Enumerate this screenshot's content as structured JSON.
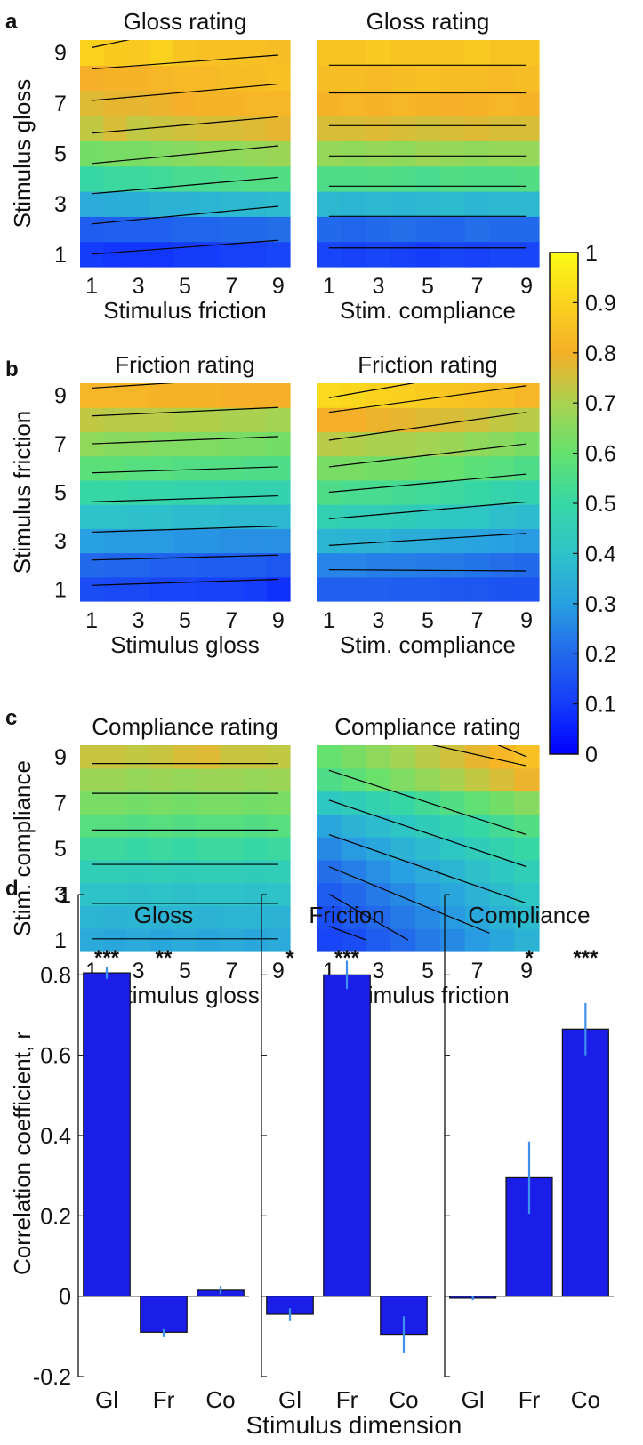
{
  "panel_letters": [
    "a",
    "b",
    "c",
    "d"
  ],
  "colorbar": {
    "ticks": [
      "1",
      "0.9",
      "0.8",
      "0.7",
      "0.6",
      "0.5",
      "0.4",
      "0.3",
      "0.2",
      "0.1",
      "0"
    ]
  },
  "chart_data": [
    {
      "type": "heatmap",
      "panel": "a",
      "title": "Gloss rating",
      "xlabel": "Stimulus friction",
      "ylabel": "Stimulus gloss",
      "xticks": [
        "1",
        "3",
        "5",
        "7",
        "9"
      ],
      "yticks": [
        "1",
        "3",
        "5",
        "7",
        "9"
      ],
      "x": [
        1,
        2,
        3,
        4,
        5,
        6,
        7,
        8,
        9
      ],
      "y": [
        1,
        2,
        3,
        4,
        5,
        6,
        7,
        8,
        9
      ],
      "grid": [
        [
          0.1,
          0.09,
          0.09,
          0.09,
          0.1,
          0.1,
          0.11,
          0.11,
          0.12
        ],
        [
          0.17,
          0.18,
          0.18,
          0.18,
          0.19,
          0.19,
          0.2,
          0.2,
          0.21
        ],
        [
          0.33,
          0.34,
          0.34,
          0.35,
          0.35,
          0.36,
          0.37,
          0.37,
          0.38
        ],
        [
          0.5,
          0.51,
          0.51,
          0.52,
          0.54,
          0.54,
          0.55,
          0.56,
          0.56
        ],
        [
          0.62,
          0.63,
          0.63,
          0.64,
          0.65,
          0.66,
          0.66,
          0.67,
          0.68
        ],
        [
          0.73,
          0.76,
          0.73,
          0.74,
          0.75,
          0.76,
          0.76,
          0.77,
          0.78
        ],
        [
          0.77,
          0.78,
          0.78,
          0.79,
          0.8,
          0.81,
          0.81,
          0.82,
          0.82
        ],
        [
          0.8,
          0.81,
          0.81,
          0.82,
          0.83,
          0.83,
          0.84,
          0.84,
          0.85
        ],
        [
          0.9,
          0.88,
          0.87,
          0.9,
          0.86,
          0.85,
          0.85,
          0.85,
          0.84
        ]
      ]
    },
    {
      "type": "heatmap",
      "panel": "a",
      "title": "Gloss rating",
      "xlabel": "Stim. compliance",
      "ylabel": "",
      "xticks": [
        "1",
        "3",
        "5",
        "7",
        "9"
      ],
      "yticks": [],
      "x": [
        1,
        2,
        3,
        4,
        5,
        6,
        7,
        8,
        9
      ],
      "y": [
        1,
        2,
        3,
        4,
        5,
        6,
        7,
        8,
        9
      ],
      "grid": [
        [
          0.12,
          0.11,
          0.12,
          0.11,
          0.1,
          0.12,
          0.11,
          0.12,
          0.12
        ],
        [
          0.2,
          0.19,
          0.2,
          0.21,
          0.2,
          0.19,
          0.21,
          0.2,
          0.2
        ],
        [
          0.37,
          0.36,
          0.37,
          0.36,
          0.37,
          0.38,
          0.36,
          0.37,
          0.37
        ],
        [
          0.55,
          0.55,
          0.56,
          0.55,
          0.54,
          0.56,
          0.55,
          0.55,
          0.56
        ],
        [
          0.67,
          0.66,
          0.67,
          0.66,
          0.68,
          0.67,
          0.66,
          0.67,
          0.67
        ],
        [
          0.76,
          0.76,
          0.77,
          0.76,
          0.75,
          0.76,
          0.77,
          0.76,
          0.76
        ],
        [
          0.81,
          0.82,
          0.81,
          0.82,
          0.81,
          0.8,
          0.81,
          0.82,
          0.81
        ],
        [
          0.84,
          0.84,
          0.83,
          0.84,
          0.85,
          0.84,
          0.84,
          0.83,
          0.84
        ],
        [
          0.86,
          0.86,
          0.87,
          0.86,
          0.86,
          0.86,
          0.87,
          0.86,
          0.86
        ]
      ]
    },
    {
      "type": "heatmap",
      "panel": "b",
      "title": "Friction rating",
      "xlabel": "Stimulus gloss",
      "ylabel": "Stimulus friction",
      "xticks": [
        "1",
        "3",
        "5",
        "7",
        "9"
      ],
      "yticks": [
        "1",
        "3",
        "5",
        "7",
        "9"
      ],
      "x": [
        1,
        2,
        3,
        4,
        5,
        6,
        7,
        8,
        9
      ],
      "y": [
        1,
        2,
        3,
        4,
        5,
        6,
        7,
        8,
        9
      ],
      "grid": [
        [
          0.14,
          0.13,
          0.13,
          0.12,
          0.12,
          0.11,
          0.11,
          0.1,
          0.08
        ],
        [
          0.2,
          0.19,
          0.19,
          0.18,
          0.18,
          0.17,
          0.17,
          0.17,
          0.16
        ],
        [
          0.3,
          0.29,
          0.29,
          0.29,
          0.28,
          0.28,
          0.27,
          0.27,
          0.27
        ],
        [
          0.4,
          0.4,
          0.39,
          0.39,
          0.38,
          0.38,
          0.37,
          0.37,
          0.37
        ],
        [
          0.5,
          0.5,
          0.49,
          0.49,
          0.48,
          0.48,
          0.47,
          0.47,
          0.47
        ],
        [
          0.58,
          0.58,
          0.57,
          0.57,
          0.56,
          0.56,
          0.56,
          0.55,
          0.55
        ],
        [
          0.66,
          0.65,
          0.65,
          0.64,
          0.64,
          0.64,
          0.63,
          0.63,
          0.62
        ],
        [
          0.73,
          0.72,
          0.72,
          0.72,
          0.71,
          0.71,
          0.7,
          0.7,
          0.69
        ],
        [
          0.82,
          0.82,
          0.82,
          0.81,
          0.81,
          0.81,
          0.8,
          0.8,
          0.8
        ]
      ]
    },
    {
      "type": "heatmap",
      "panel": "b",
      "title": "Friction rating",
      "xlabel": "Stim. compliance",
      "ylabel": "",
      "xticks": [
        "1",
        "3",
        "5",
        "7",
        "9"
      ],
      "yticks": [],
      "x": [
        1,
        2,
        3,
        4,
        5,
        6,
        7,
        8,
        9
      ],
      "y": [
        1,
        2,
        3,
        4,
        5,
        6,
        7,
        8,
        9
      ],
      "grid": [
        [
          0.18,
          0.18,
          0.18,
          0.17,
          0.17,
          0.16,
          0.16,
          0.15,
          0.15
        ],
        [
          0.25,
          0.25,
          0.24,
          0.24,
          0.23,
          0.23,
          0.22,
          0.21,
          0.2
        ],
        [
          0.36,
          0.35,
          0.35,
          0.34,
          0.33,
          0.32,
          0.31,
          0.3,
          0.29
        ],
        [
          0.46,
          0.45,
          0.45,
          0.44,
          0.43,
          0.42,
          0.41,
          0.39,
          0.38
        ],
        [
          0.55,
          0.54,
          0.54,
          0.53,
          0.52,
          0.51,
          0.5,
          0.48,
          0.47
        ],
        [
          0.63,
          0.63,
          0.62,
          0.62,
          0.61,
          0.6,
          0.58,
          0.57,
          0.55
        ],
        [
          0.72,
          0.71,
          0.7,
          0.7,
          0.69,
          0.68,
          0.66,
          0.65,
          0.63
        ],
        [
          0.8,
          0.8,
          0.79,
          0.78,
          0.77,
          0.76,
          0.75,
          0.73,
          0.72
        ],
        [
          0.92,
          0.91,
          0.9,
          0.89,
          0.88,
          0.86,
          0.85,
          0.84,
          0.82
        ]
      ]
    },
    {
      "type": "heatmap",
      "panel": "c",
      "title": "Compliance rating",
      "xlabel": "Stimulus gloss",
      "ylabel": "Stim. compliance",
      "xticks": [
        "1",
        "3",
        "5",
        "7",
        "9"
      ],
      "yticks": [
        "1",
        "3",
        "5",
        "7",
        "9"
      ],
      "x": [
        1,
        2,
        3,
        4,
        5,
        6,
        7,
        8,
        9
      ],
      "y": [
        1,
        2,
        3,
        4,
        5,
        6,
        7,
        8,
        9
      ],
      "grid": [
        [
          0.33,
          0.32,
          0.33,
          0.32,
          0.33,
          0.32,
          0.33,
          0.32,
          0.33
        ],
        [
          0.36,
          0.35,
          0.36,
          0.35,
          0.36,
          0.35,
          0.36,
          0.36,
          0.35
        ],
        [
          0.4,
          0.4,
          0.39,
          0.4,
          0.39,
          0.4,
          0.4,
          0.39,
          0.4
        ],
        [
          0.45,
          0.45,
          0.44,
          0.45,
          0.44,
          0.45,
          0.45,
          0.44,
          0.45
        ],
        [
          0.51,
          0.51,
          0.5,
          0.51,
          0.5,
          0.51,
          0.51,
          0.5,
          0.51
        ],
        [
          0.57,
          0.57,
          0.56,
          0.57,
          0.56,
          0.57,
          0.57,
          0.56,
          0.57
        ],
        [
          0.63,
          0.63,
          0.62,
          0.63,
          0.62,
          0.63,
          0.63,
          0.62,
          0.63
        ],
        [
          0.68,
          0.68,
          0.67,
          0.68,
          0.67,
          0.68,
          0.68,
          0.67,
          0.68
        ],
        [
          0.74,
          0.74,
          0.73,
          0.74,
          0.76,
          0.77,
          0.74,
          0.74,
          0.73
        ]
      ]
    },
    {
      "type": "heatmap",
      "panel": "c",
      "title": "Compliance rating",
      "xlabel": "Stimulus friction",
      "ylabel": "",
      "xticks": [
        "1",
        "3",
        "5",
        "7",
        "9"
      ],
      "yticks": [],
      "x": [
        1,
        2,
        3,
        4,
        5,
        6,
        7,
        8,
        9
      ],
      "y": [
        1,
        2,
        3,
        4,
        5,
        6,
        7,
        8,
        9
      ],
      "grid": [
        [
          0.12,
          0.14,
          0.17,
          0.2,
          0.23,
          0.26,
          0.29,
          0.32,
          0.35
        ],
        [
          0.14,
          0.17,
          0.2,
          0.23,
          0.26,
          0.29,
          0.32,
          0.35,
          0.38
        ],
        [
          0.17,
          0.2,
          0.23,
          0.26,
          0.29,
          0.32,
          0.35,
          0.38,
          0.41
        ],
        [
          0.21,
          0.24,
          0.27,
          0.3,
          0.33,
          0.36,
          0.39,
          0.42,
          0.45
        ],
        [
          0.26,
          0.29,
          0.32,
          0.35,
          0.38,
          0.41,
          0.44,
          0.47,
          0.5
        ],
        [
          0.32,
          0.35,
          0.38,
          0.41,
          0.44,
          0.47,
          0.5,
          0.53,
          0.56
        ],
        [
          0.42,
          0.44,
          0.47,
          0.5,
          0.53,
          0.56,
          0.59,
          0.62,
          0.65
        ],
        [
          0.55,
          0.58,
          0.61,
          0.64,
          0.67,
          0.7,
          0.73,
          0.76,
          0.79
        ],
        [
          0.6,
          0.63,
          0.66,
          0.69,
          0.72,
          0.75,
          0.78,
          0.82,
          0.85
        ]
      ]
    },
    {
      "type": "bar",
      "panel": "d",
      "title": "Gloss",
      "ylabel": "Correlation coefficient, r",
      "xlabel": "Stimulus dimension",
      "categories": [
        "Gl",
        "Fr",
        "Co"
      ],
      "values": [
        0.805,
        -0.09,
        0.015
      ],
      "errors": [
        0.015,
        0.01,
        0.01
      ],
      "significance": [
        "***",
        "**",
        ""
      ],
      "ylim": [
        -0.2,
        1
      ],
      "yticks": [
        "-0.2",
        "0",
        "0.2",
        "0.4",
        "0.6",
        "0.8",
        "1"
      ]
    },
    {
      "type": "bar",
      "panel": "d",
      "title": "Friction",
      "ylabel": "",
      "xlabel": "Stimulus dimension",
      "categories": [
        "Gl",
        "Fr",
        "Co"
      ],
      "values": [
        -0.045,
        0.8,
        -0.095
      ],
      "errors": [
        0.015,
        0.035,
        0.045
      ],
      "significance": [
        "*",
        "***",
        ""
      ],
      "ylim": [
        -0.2,
        1
      ],
      "yticks": []
    },
    {
      "type": "bar",
      "panel": "d",
      "title": "Compliance",
      "ylabel": "",
      "xlabel": "Stimulus dimension",
      "categories": [
        "Gl",
        "Fr",
        "Co"
      ],
      "values": [
        -0.005,
        0.295,
        0.665
      ],
      "errors": [
        0.005,
        0.09,
        0.065
      ],
      "significance": [
        "",
        "*",
        "***"
      ],
      "ylim": [
        -0.2,
        1
      ],
      "yticks": []
    }
  ],
  "bar_axis_label": "Stimulus dimension",
  "colors": {
    "bar_fill": "#1a1ee8",
    "error_bar": "#3e8ff0",
    "significance": "#ff2a2a",
    "contour": "#000000"
  }
}
